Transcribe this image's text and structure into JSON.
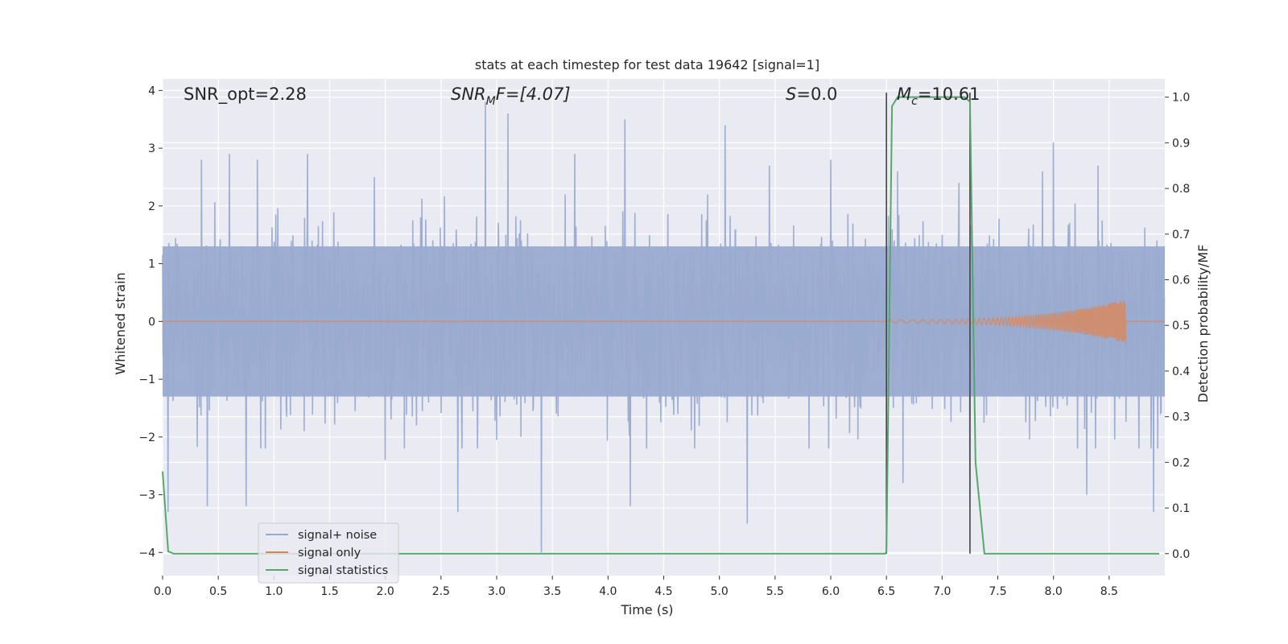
{
  "chart_data": {
    "type": "line",
    "title": "stats at each timestep for test data 19642 [signal=1]",
    "xlabel": "Time (s)",
    "ylabel_left": "Whitened strain",
    "ylabel_right": "Detection probability/MF",
    "xlim": [
      0.0,
      9.0
    ],
    "ylim_left": [
      -4.4,
      4.2
    ],
    "ylim_right": [
      -0.048,
      1.04
    ],
    "xticks": [
      "0.0",
      "0.5",
      "1.0",
      "1.5",
      "2.0",
      "2.5",
      "3.0",
      "3.5",
      "4.0",
      "4.5",
      "5.0",
      "5.5",
      "6.0",
      "6.5",
      "7.0",
      "7.5",
      "8.0",
      "8.5"
    ],
    "yticks_left": [
      "4",
      "3",
      "2",
      "1",
      "0",
      "−1",
      "−2",
      "−3",
      "−4"
    ],
    "yticks_right": [
      "1.0",
      "0.9",
      "0.8",
      "0.7",
      "0.6",
      "0.5",
      "0.4",
      "0.3",
      "0.2",
      "0.1",
      "0.0"
    ],
    "annotations": {
      "snr_opt": "SNR_opt=2.28",
      "snr_mf_main": "SNR",
      "snr_mf_sub": "M",
      "snr_mf_rest": "F=[4.07]",
      "s_main": "S",
      "s_rest": "=0.0",
      "mc_main": "M",
      "mc_sub": "c",
      "mc_rest": "=10.61"
    },
    "vertical_markers": [
      6.5,
      7.25
    ],
    "series": [
      {
        "name": "signal+ noise",
        "color": "#9aabd0",
        "description_values": {
          "envelope_positive_typical": 1.6,
          "envelope_negative_typical": -1.7,
          "spikes_positive": [
            [
              0.05,
              1.8
            ],
            [
              0.35,
              2.8
            ],
            [
              0.6,
              2.9
            ],
            [
              0.85,
              2.8
            ],
            [
              1.3,
              2.9
            ],
            [
              1.9,
              2.5
            ],
            [
              2.9,
              3.8
            ],
            [
              3.1,
              3.6
            ],
            [
              3.7,
              2.9
            ],
            [
              4.15,
              3.5
            ],
            [
              5.05,
              3.4
            ],
            [
              5.45,
              2.7
            ],
            [
              6.0,
              2.8
            ],
            [
              6.6,
              2.6
            ],
            [
              7.15,
              2.4
            ],
            [
              7.9,
              2.6
            ],
            [
              8.0,
              3.1
            ],
            [
              8.4,
              2.7
            ],
            [
              8.9,
              2.5
            ]
          ],
          "spikes_negative": [
            [
              0.05,
              -3.3
            ],
            [
              0.4,
              -3.2
            ],
            [
              0.75,
              -3.2
            ],
            [
              2.0,
              -2.4
            ],
            [
              2.65,
              -3.3
            ],
            [
              3.4,
              -4.0
            ],
            [
              4.2,
              -3.2
            ],
            [
              5.25,
              -3.5
            ],
            [
              6.65,
              -2.8
            ],
            [
              7.25,
              -3.1
            ],
            [
              8.3,
              -3.0
            ],
            [
              8.9,
              -3.3
            ]
          ]
        }
      },
      {
        "name": "signal only",
        "color": "#dd8452",
        "description_values": {
          "chirp_start": 6.5,
          "chirp_end": 8.65,
          "max_amplitude": 0.35
        }
      },
      {
        "name": "signal statistics",
        "color": "#55a868",
        "x": [
          0.0,
          0.05,
          0.1,
          6.49,
          6.5,
          6.55,
          6.6,
          6.7,
          7.2,
          7.25,
          7.3,
          7.38,
          7.45,
          8.95
        ],
        "y": [
          0.18,
          0.005,
          0.0,
          0.0,
          0.005,
          0.98,
          1.0,
          1.0,
          1.0,
          0.99,
          0.2,
          0.0,
          0.0,
          0.0
        ]
      }
    ],
    "legend": {
      "position": "lower-left",
      "entries": [
        "signal+ noise",
        "signal only",
        "signal statistics"
      ]
    },
    "grid": true,
    "background": "#eaeaf2"
  }
}
